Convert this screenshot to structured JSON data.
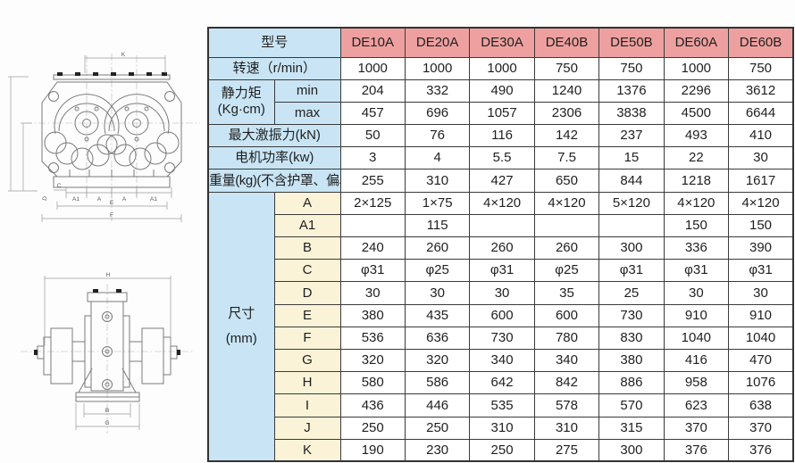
{
  "colors": {
    "header_bg": "#eea0a0",
    "label_bg": "#c9e5f5",
    "dim_key_bg": "#faf3d8",
    "cell_bg": "#ffffff",
    "border": "#3a3a3a",
    "drawing_line": "#7a7a7a"
  },
  "table": {
    "model_header": "型号",
    "models": [
      "DE10A",
      "DE20A",
      "DE30A",
      "DE40B",
      "DE50B",
      "DE60A",
      "DE60B"
    ],
    "speed": {
      "label": "转速（r/min）",
      "values": [
        "1000",
        "1000",
        "1000",
        "750",
        "750",
        "1000",
        "750"
      ]
    },
    "static_moment": {
      "label": "静力矩",
      "unit": "(Kg·cm)",
      "min_label": "min",
      "max_label": "max",
      "min_values": [
        "204",
        "332",
        "490",
        "1240",
        "1376",
        "2296",
        "3612"
      ],
      "max_values": [
        "457",
        "696",
        "1057",
        "2306",
        "3838",
        "4500",
        "6644"
      ]
    },
    "force": {
      "label": "最大激振力(kN)",
      "values": [
        "50",
        "76",
        "116",
        "142",
        "237",
        "493",
        "410"
      ]
    },
    "power": {
      "label": "电机功率(kw)",
      "values": [
        "3",
        "4",
        "5.5",
        "7.5",
        "15",
        "22",
        "30"
      ]
    },
    "weight": {
      "label": "重量(kg)(不含护罩、偏心块)",
      "values": [
        "255",
        "310",
        "427",
        "650",
        "844",
        "1218",
        "1617"
      ]
    },
    "dims": {
      "label": "尺寸",
      "unit": "(mm)",
      "rows": [
        {
          "key": "A",
          "values": [
            "2×125",
            "1×75",
            "4×120",
            "4×120",
            "5×120",
            "4×120",
            "4×120"
          ]
        },
        {
          "key": "A1",
          "values": [
            "",
            "115",
            "",
            "",
            "",
            "150",
            "150"
          ]
        },
        {
          "key": "B",
          "values": [
            "240",
            "260",
            "260",
            "260",
            "300",
            "336",
            "390"
          ]
        },
        {
          "key": "C",
          "values": [
            "φ31",
            "φ25",
            "φ31",
            "φ25",
            "φ31",
            "φ31",
            "φ31"
          ]
        },
        {
          "key": "D",
          "values": [
            "30",
            "30",
            "30",
            "35",
            "25",
            "30",
            "30"
          ]
        },
        {
          "key": "E",
          "values": [
            "380",
            "435",
            "600",
            "600",
            "730",
            "910",
            "910"
          ]
        },
        {
          "key": "F",
          "values": [
            "536",
            "636",
            "730",
            "780",
            "830",
            "1040",
            "1040"
          ]
        },
        {
          "key": "G",
          "values": [
            "320",
            "320",
            "340",
            "340",
            "380",
            "416",
            "470"
          ]
        },
        {
          "key": "H",
          "values": [
            "580",
            "586",
            "642",
            "842",
            "886",
            "958",
            "1076"
          ]
        },
        {
          "key": "I",
          "values": [
            "436",
            "446",
            "535",
            "578",
            "570",
            "623",
            "638"
          ]
        },
        {
          "key": "J",
          "values": [
            "250",
            "250",
            "310",
            "310",
            "315",
            "370",
            "370"
          ]
        },
        {
          "key": "K",
          "values": [
            "190",
            "230",
            "250",
            "275",
            "300",
            "376",
            "376"
          ]
        }
      ]
    }
  },
  "diagram_top": {
    "description": "front view engineering drawing of twin-shaft vibration exciter",
    "dim_labels": {
      "k": "K",
      "c": "C",
      "d": "D",
      "a1_left": "A1",
      "a_left": "A",
      "a_right": "A",
      "a1_right": "A1",
      "e": "E",
      "f": "F"
    }
  },
  "diagram_bottom": {
    "description": "side view engineering drawing of vibration motor",
    "dim_labels": {
      "h": "H",
      "b": "B",
      "g": "G"
    }
  }
}
